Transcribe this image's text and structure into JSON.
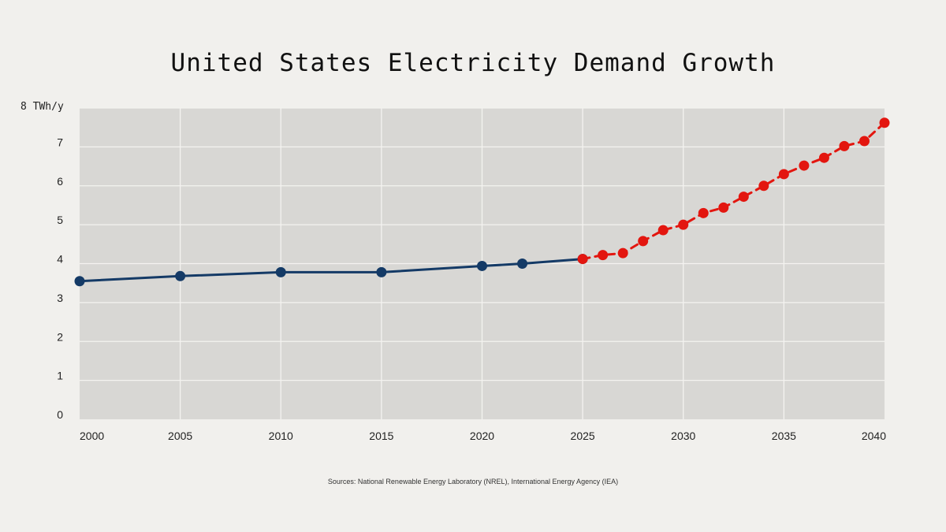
{
  "chart_data": {
    "type": "line",
    "title": "United States Electricity Demand Growth",
    "ylabel": "TWh/y",
    "ylim": [
      0,
      8
    ],
    "xlim": [
      2000,
      2040
    ],
    "y_ticks": [
      "0",
      "1",
      "2",
      "3",
      "4",
      "5",
      "6",
      "7",
      "8"
    ],
    "x_ticks": [
      "2000",
      "2005",
      "2010",
      "2015",
      "2020",
      "2025",
      "2030",
      "2035",
      "2040"
    ],
    "grid": true,
    "series": [
      {
        "style": "solid",
        "color": "#143a66",
        "x": [
          2000,
          2005,
          2010,
          2015,
          2020,
          2022,
          2025
        ],
        "y": [
          3.55,
          3.68,
          3.78,
          3.78,
          3.94,
          4.0,
          4.12
        ]
      },
      {
        "style": "dashed",
        "color": "#e3160f",
        "x": [
          2025,
          2026,
          2027,
          2028,
          2029,
          2030,
          2031,
          2032,
          2033,
          2034,
          2035,
          2036,
          2037,
          2038,
          2039,
          2040
        ],
        "y": [
          4.12,
          4.22,
          4.27,
          4.58,
          4.86,
          5.0,
          5.3,
          5.44,
          5.72,
          6.0,
          6.3,
          6.52,
          6.72,
          7.02,
          7.15,
          7.62
        ]
      }
    ]
  },
  "footer": {
    "source": "Sources: National Renewable Energy Laboratory (NREL), International Energy Agency (IEA)"
  }
}
